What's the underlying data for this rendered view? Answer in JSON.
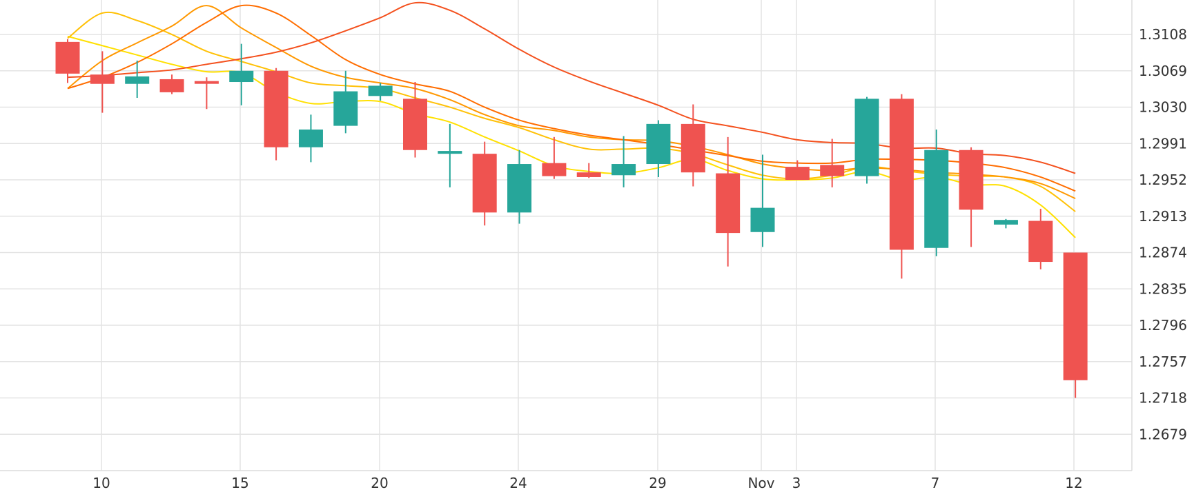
{
  "chart_data": {
    "type": "candlestick",
    "x_tick_labels": [
      "10",
      "15",
      "20",
      "24",
      "29",
      "Nov",
      "3",
      "7",
      "12"
    ],
    "y_tick_labels": [
      "1.3108",
      "1.3069",
      "1.3030",
      "1.2991",
      "1.2952",
      "1.2913",
      "1.2874",
      "1.2835",
      "1.2796",
      "1.2757",
      "1.2718",
      "1.2679"
    ],
    "ylim": [
      1.264,
      1.3145
    ],
    "grid": true,
    "colors": {
      "up": "#26a69a",
      "down": "#ef5350",
      "grid": "#e3e3e3"
    },
    "candles": [
      {
        "open": 1.31,
        "high": 1.3103,
        "low": 1.3056,
        "close": 1.3066
      },
      {
        "open": 1.3065,
        "high": 1.309,
        "low": 1.3024,
        "close": 1.3055
      },
      {
        "open": 1.3055,
        "high": 1.308,
        "low": 1.304,
        "close": 1.3063
      },
      {
        "open": 1.306,
        "high": 1.3065,
        "low": 1.3044,
        "close": 1.3046
      },
      {
        "open": 1.3058,
        "high": 1.3062,
        "low": 1.3028,
        "close": 1.3057
      },
      {
        "open": 1.3057,
        "high": 1.3098,
        "low": 1.3032,
        "close": 1.3069
      },
      {
        "open": 1.3069,
        "high": 1.3072,
        "low": 1.2973,
        "close": 1.2987
      },
      {
        "open": 1.2987,
        "high": 1.3022,
        "low": 1.2971,
        "close": 1.3006
      },
      {
        "open": 1.301,
        "high": 1.3069,
        "low": 1.3002,
        "close": 1.3047
      },
      {
        "open": 1.3042,
        "high": 1.3056,
        "low": 1.3037,
        "close": 1.3053
      },
      {
        "open": 1.3039,
        "high": 1.3057,
        "low": 1.2976,
        "close": 1.2984
      },
      {
        "open": 1.298,
        "high": 1.3012,
        "low": 1.2944,
        "close": 1.2983
      },
      {
        "open": 1.298,
        "high": 1.2993,
        "low": 1.2903,
        "close": 1.2917
      },
      {
        "open": 1.2917,
        "high": 1.2984,
        "low": 1.2905,
        "close": 1.2969
      },
      {
        "open": 1.297,
        "high": 1.2998,
        "low": 1.2953,
        "close": 1.2956
      },
      {
        "open": 1.296,
        "high": 1.297,
        "low": 1.2954,
        "close": 1.2955
      },
      {
        "open": 1.2957,
        "high": 1.2999,
        "low": 1.2944,
        "close": 1.2969
      },
      {
        "open": 1.2969,
        "high": 1.3016,
        "low": 1.2955,
        "close": 1.3012
      },
      {
        "open": 1.3012,
        "high": 1.3033,
        "low": 1.2945,
        "close": 1.296
      },
      {
        "open": 1.2959,
        "high": 1.2998,
        "low": 1.2859,
        "close": 1.2895
      },
      {
        "open": 1.2896,
        "high": 1.2979,
        "low": 1.288,
        "close": 1.2922
      },
      {
        "open": 1.2966,
        "high": 1.2973,
        "low": 1.2952,
        "close": 1.2952
      },
      {
        "open": 1.2968,
        "high": 1.2996,
        "low": 1.2944,
        "close": 1.2956
      },
      {
        "open": 1.2956,
        "high": 1.3041,
        "low": 1.2948,
        "close": 1.3039
      },
      {
        "open": 1.3039,
        "high": 1.3044,
        "low": 1.2846,
        "close": 1.2877
      },
      {
        "open": 1.2879,
        "high": 1.3006,
        "low": 1.287,
        "close": 1.2984
      },
      {
        "open": 1.2984,
        "high": 1.2987,
        "low": 1.288,
        "close": 1.292
      },
      {
        "open": 1.2904,
        "high": 1.291,
        "low": 1.29,
        "close": 1.2909
      },
      {
        "open": 1.2908,
        "high": 1.2921,
        "low": 1.2856,
        "close": 1.2864
      },
      {
        "open": 1.2874,
        "high": 1.2874,
        "low": 1.2718,
        "close": 1.2737
      }
    ],
    "moving_averages": [
      {
        "color": "#ffe000",
        "values": [
          1.3106,
          1.3096,
          1.3086,
          1.3076,
          1.3068,
          1.3067,
          1.3046,
          1.3034,
          1.3036,
          1.3036,
          1.3023,
          1.3014,
          1.2998,
          1.2983,
          1.2967,
          1.2961,
          1.2959,
          1.2965,
          1.2974,
          1.2962,
          1.2953,
          1.2952,
          1.2954,
          1.2961,
          1.2952,
          1.2955,
          1.2947,
          1.2945,
          1.2925,
          1.289
        ]
      },
      {
        "color": "#ffc107",
        "values": [
          1.3104,
          1.3131,
          1.3123,
          1.3108,
          1.309,
          1.3079,
          1.3068,
          1.3056,
          1.3053,
          1.305,
          1.304,
          1.303,
          1.3018,
          1.3008,
          1.2995,
          1.2985,
          1.2985,
          1.2986,
          1.298,
          1.2968,
          1.2957,
          1.2953,
          1.2957,
          1.2966,
          1.2962,
          1.2958,
          1.2956,
          1.2955,
          1.2945,
          1.2918
        ]
      },
      {
        "color": "#ff9800",
        "values": [
          1.305,
          1.308,
          1.3099,
          1.3117,
          1.3139,
          1.3115,
          1.3094,
          1.3074,
          1.3062,
          1.3056,
          1.305,
          1.3038,
          1.3022,
          1.301,
          1.3005,
          1.2998,
          1.2995,
          1.2994,
          1.2988,
          1.2979,
          1.2969,
          1.2964,
          1.2962,
          1.2965,
          1.2963,
          1.296,
          1.2958,
          1.2955,
          1.2948,
          1.2932
        ]
      },
      {
        "color": "#ff6d00",
        "values": [
          1.305,
          1.3062,
          1.3078,
          1.3098,
          1.3121,
          1.3139,
          1.3131,
          1.3107,
          1.3081,
          1.3065,
          1.3055,
          1.3047,
          1.303,
          1.3016,
          1.3007,
          1.3,
          1.2995,
          1.299,
          1.2984,
          1.2978,
          1.2972,
          1.297,
          1.297,
          1.2974,
          1.2974,
          1.2973,
          1.297,
          1.2965,
          1.2955,
          1.294
        ]
      },
      {
        "color": "#f4511e",
        "values": [
          1.3062,
          1.3064,
          1.3067,
          1.307,
          1.3076,
          1.3082,
          1.3089,
          1.3099,
          1.3112,
          1.3126,
          1.3142,
          1.3134,
          1.3114,
          1.3092,
          1.3073,
          1.3058,
          1.3045,
          1.3032,
          1.3017,
          1.301,
          1.3003,
          1.2995,
          1.2992,
          1.2991,
          1.2986,
          1.2986,
          1.298,
          1.2978,
          1.2971,
          1.2959
        ]
      }
    ]
  }
}
